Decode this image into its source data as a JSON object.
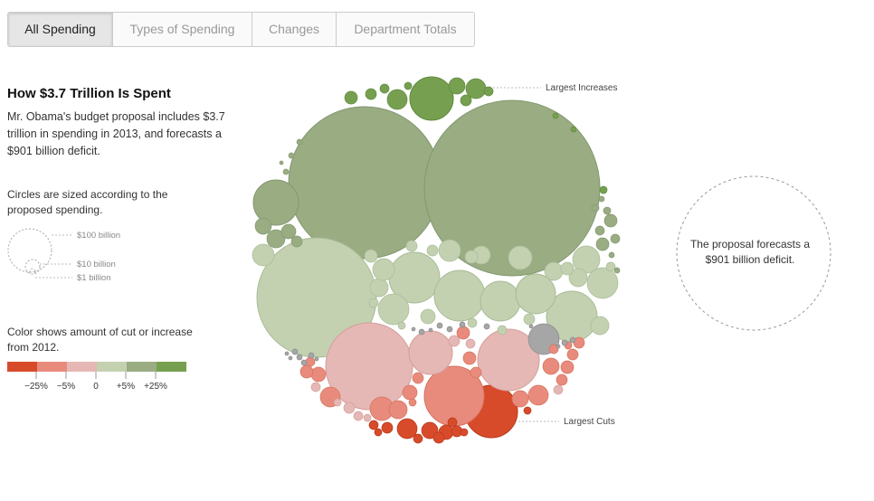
{
  "tabs": [
    "All Spending",
    "Types of Spending",
    "Changes",
    "Department Totals"
  ],
  "active_tab": 0,
  "title": "How $3.7 Trillion Is Spent",
  "intro": "Mr. Obama's budget proposal includes $3.7 trillion in spending in 2013, and forecasts a $901 billion deficit.",
  "size_legend": {
    "text": "Circles are sized according to the proposed spending.",
    "labels": [
      "$100 billion",
      "$10 billion",
      "$1 billion"
    ]
  },
  "color_legend": {
    "text": "Color shows amount of cut or increase from 2012.",
    "swatches": [
      "#d84b2a",
      "#e98b7c",
      "#e5b8b5",
      "#c3d1b1",
      "#9aac82",
      "#76a050"
    ],
    "scale_labels": [
      "−25%",
      "−5%",
      "0",
      "+5%",
      "+25%"
    ]
  },
  "callouts": {
    "increases": "Largest Increases",
    "cuts": "Largest Cuts"
  },
  "deficit_text": "The proposal forecasts a $901 billion deficit.",
  "colors": {
    "big_increase": "#76a050",
    "increase": "#9aac82",
    "flat": "#c3d1b1",
    "small_cut": "#e5b8b5",
    "cut": "#e98b7c",
    "big_cut": "#d84b2a",
    "unknown": "#a6a6a6"
  },
  "chart_data": {
    "type": "bubble",
    "title": "How $3.7 Trillion Is Spent",
    "color_scale": {
      "labels": [
        "−25%",
        "−5%",
        "0",
        "+5%",
        "+25%"
      ]
    },
    "callouts": [
      "Largest Increases",
      "Largest Cuts"
    ],
    "total_spending_trillions": 3.7,
    "deficit_billions": 901
  }
}
